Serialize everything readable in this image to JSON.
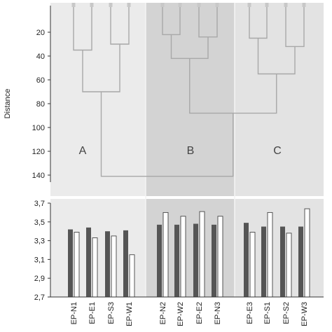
{
  "chart_data": [
    {
      "type": "dendrogram",
      "ylabel": "Distance",
      "ylim": [
        0,
        150
      ],
      "y_ticks": [
        "20",
        "40",
        "60",
        "80",
        "100",
        "120",
        "140"
      ],
      "y_tick_values": [
        20,
        40,
        60,
        80,
        100,
        120,
        140
      ],
      "groups": [
        {
          "label": "A",
          "members": [
            "EP-N1",
            "EP-E1",
            "EP-S3",
            "EP-W1"
          ],
          "color": "#ebebeb"
        },
        {
          "label": "B",
          "members": [
            "EP-N2",
            "EP-W2",
            "EP-E2",
            "EP-N3"
          ],
          "color": "#d3d3d3"
        },
        {
          "label": "C",
          "members": [
            "EP-E3",
            "EP-S1",
            "EP-S2",
            "EP-W3"
          ],
          "color": "#e3e3e3"
        }
      ],
      "merges": [
        {
          "left": "EP-N1",
          "right": "EP-E1",
          "height": 35
        },
        {
          "left": "EP-S3",
          "right": "EP-W1",
          "height": 30
        },
        {
          "left": "A1",
          "right": "A2",
          "height": 70
        },
        {
          "left": "EP-N2",
          "right": "EP-W2",
          "height": 22
        },
        {
          "left": "EP-E2",
          "right": "EP-N3",
          "height": 24
        },
        {
          "left": "B1",
          "right": "B2",
          "height": 42
        },
        {
          "left": "EP-E3",
          "right": "EP-S1",
          "height": 25
        },
        {
          "left": "EP-S2",
          "right": "EP-W3",
          "height": 32
        },
        {
          "left": "C1",
          "right": "C2",
          "height": 55
        },
        {
          "left": "B",
          "right": "C",
          "height": 88
        },
        {
          "left": "A",
          "right": "BC",
          "height": 141
        }
      ]
    },
    {
      "type": "bar",
      "categories": [
        "EP-N1",
        "EP-E1",
        "EP-S3",
        "EP-W1",
        "EP-N2",
        "EP-W2",
        "EP-E2",
        "EP-N3",
        "EP-E3",
        "EP-S1",
        "EP-S2",
        "EP-W3"
      ],
      "series": [
        {
          "values": [
            3.42,
            3.44,
            3.4,
            3.41,
            3.47,
            3.47,
            3.48,
            3.47,
            3.49,
            3.45,
            3.45,
            3.45
          ],
          "color": "#555555"
        },
        {
          "values": [
            3.39,
            3.33,
            3.35,
            3.15,
            3.6,
            3.56,
            3.61,
            3.56,
            3.39,
            3.6,
            3.38,
            3.64
          ],
          "color": "#ffffff"
        }
      ],
      "ylim": [
        2.7,
        3.7
      ],
      "y_ticks": [
        "2,7",
        "2,9",
        "3,1",
        "3,3",
        "3,5",
        "3,7"
      ],
      "y_tick_values": [
        2.7,
        2.9,
        3.1,
        3.3,
        3.5,
        3.7
      ]
    }
  ]
}
